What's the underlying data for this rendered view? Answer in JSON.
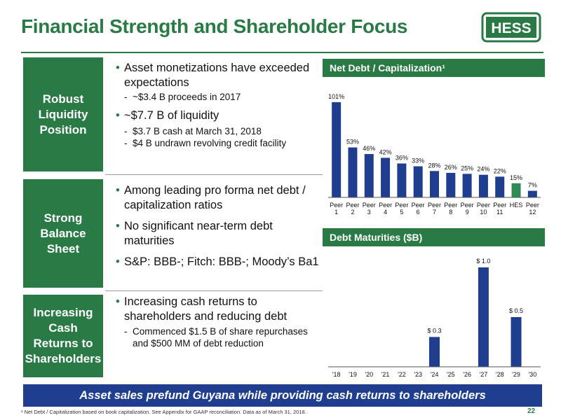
{
  "page": {
    "title": "Financial Strength and Shareholder Focus",
    "logo_text": "HESS",
    "page_number": "22",
    "banner": "Asset sales prefund Guyana while providing cash returns to shareholders",
    "footnote": "¹ Net Debt / Capitalization based on book capitalization. See Appendix for GAAP reconciliation.  Data as of March 31, 2018."
  },
  "sections": [
    {
      "label": "Robust\nLiquidity\nPosition",
      "items": [
        {
          "bullet": "Asset monetizations have exceeded expectations",
          "subs": [
            "~$3.4 B proceeds in 2017"
          ]
        },
        {
          "bullet": "~$7.7 B of liquidity",
          "subs": [
            "$3.7 B cash at March 31, 2018",
            "$4 B undrawn revolving credit facility"
          ]
        }
      ]
    },
    {
      "label": "Strong\nBalance\nSheet",
      "items": [
        {
          "bullet": "Among leading pro forma net debt / capitalization ratios",
          "subs": []
        },
        {
          "bullet": "No significant near-term debt maturities",
          "subs": []
        },
        {
          "bullet": "S&P: BBB-; Fitch: BBB-; Moody’s Ba1",
          "subs": []
        }
      ]
    },
    {
      "label": "Increasing\nCash\nReturns to\nShareholders",
      "items": [
        {
          "bullet": "Increasing cash returns to shareholders and reducing debt",
          "subs": [
            "Commenced $1.5 B of share repurchases and $500 MM of debt reduction"
          ]
        }
      ]
    }
  ],
  "colors": {
    "brand_green": "#2a7a45",
    "bar_blue": "#1f3e8f",
    "banner_blue": "#1f3e8f",
    "hess_green": "#2e8b57"
  },
  "chart_data": [
    {
      "type": "bar",
      "title": "Net Debt / Capitalization¹",
      "categories": [
        "Peer 1",
        "Peer 2",
        "Peer 3",
        "Peer 4",
        "Peer 5",
        "Peer 6",
        "Peer 7",
        "Peer 8",
        "Peer 9",
        "Peer 10",
        "Peer 11",
        "HES",
        "Peer 12"
      ],
      "values": [
        101,
        53,
        46,
        42,
        36,
        33,
        28,
        26,
        25,
        24,
        22,
        15,
        7
      ],
      "data_labels": [
        "101%",
        "53%",
        "46%",
        "42%",
        "36%",
        "33%",
        "28%",
        "26%",
        "25%",
        "24%",
        "22%",
        "15%",
        "7%"
      ],
      "highlight": "HES",
      "ylim": [
        0,
        101
      ]
    },
    {
      "type": "bar",
      "title": "Debt Maturities ($B)",
      "categories": [
        "'18",
        "'19",
        "'20",
        "'21",
        "'22",
        "'23",
        "'24",
        "'25",
        "'26",
        "'27",
        "'28",
        "'29",
        "'30"
      ],
      "values": [
        0,
        0,
        0,
        0,
        0,
        0,
        0.3,
        0,
        0,
        1.0,
        0,
        0.5,
        0
      ],
      "data_labels": [
        "",
        "",
        "",
        "",
        "",
        "",
        "$ 0.3",
        "",
        "",
        "$ 1.0",
        "",
        "$ 0.5",
        ""
      ],
      "ylim": [
        0,
        1.0
      ]
    }
  ]
}
